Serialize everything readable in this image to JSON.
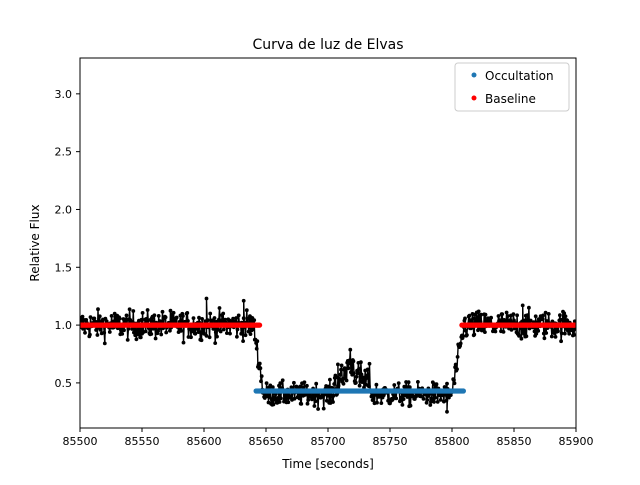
{
  "chart_data": {
    "type": "scatter",
    "title": "Curva de luz de Elvas",
    "xlabel": "Time [seconds]",
    "ylabel": "Relative Flux",
    "xlim": [
      85500,
      85900
    ],
    "ylim": [
      0.11,
      3.31
    ],
    "xticks": [
      85500,
      85550,
      85600,
      85650,
      85700,
      85750,
      85800,
      85850,
      85900
    ],
    "yticks": [
      0.5,
      1.0,
      1.5,
      2.0,
      2.5,
      3.0
    ],
    "xtick_labels": [
      "85500",
      "85550",
      "85600",
      "85650",
      "85700",
      "85750",
      "85800",
      "85850",
      "85900"
    ],
    "ytick_labels": [
      "0.5",
      "1.0",
      "1.5",
      "2.0",
      "2.5",
      "3.0"
    ],
    "grid": false,
    "legend_position": "top-right",
    "series": [
      {
        "name": "",
        "role": "light-curve",
        "color": "#000000",
        "marker": "dot-with-line",
        "segments": [
          {
            "x": [
              85500,
              85640
            ],
            "level": 1.0,
            "scatter": 0.06
          },
          {
            "x": [
              85640,
              85648
            ],
            "from": 1.0,
            "to": 0.42,
            "scatter": 0.05
          },
          {
            "x": [
              85648,
              85705
            ],
            "level": 0.4,
            "scatter": 0.05
          },
          {
            "x": [
              85705,
              85735
            ],
            "level": 0.55,
            "scatter": 0.07,
            "peak": 0.7,
            "peak_x": 85718
          },
          {
            "x": [
              85735,
              85800
            ],
            "level": 0.4,
            "scatter": 0.05
          },
          {
            "x": [
              85800,
              85810
            ],
            "from": 0.42,
            "to": 1.0,
            "scatter": 0.05
          },
          {
            "x": [
              85810,
              85900
            ],
            "level": 1.0,
            "scatter": 0.06
          }
        ]
      },
      {
        "name": "Occultation",
        "color": "#1f77b4",
        "x": [
          85642,
          85810
        ],
        "y": 0.43
      },
      {
        "name": "Baseline",
        "color": "#ff0000",
        "segments": [
          {
            "x": [
              85500,
              85645
            ],
            "y": 1.0
          },
          {
            "x": [
              85808,
              85900
            ],
            "y": 1.0
          }
        ]
      }
    ]
  }
}
